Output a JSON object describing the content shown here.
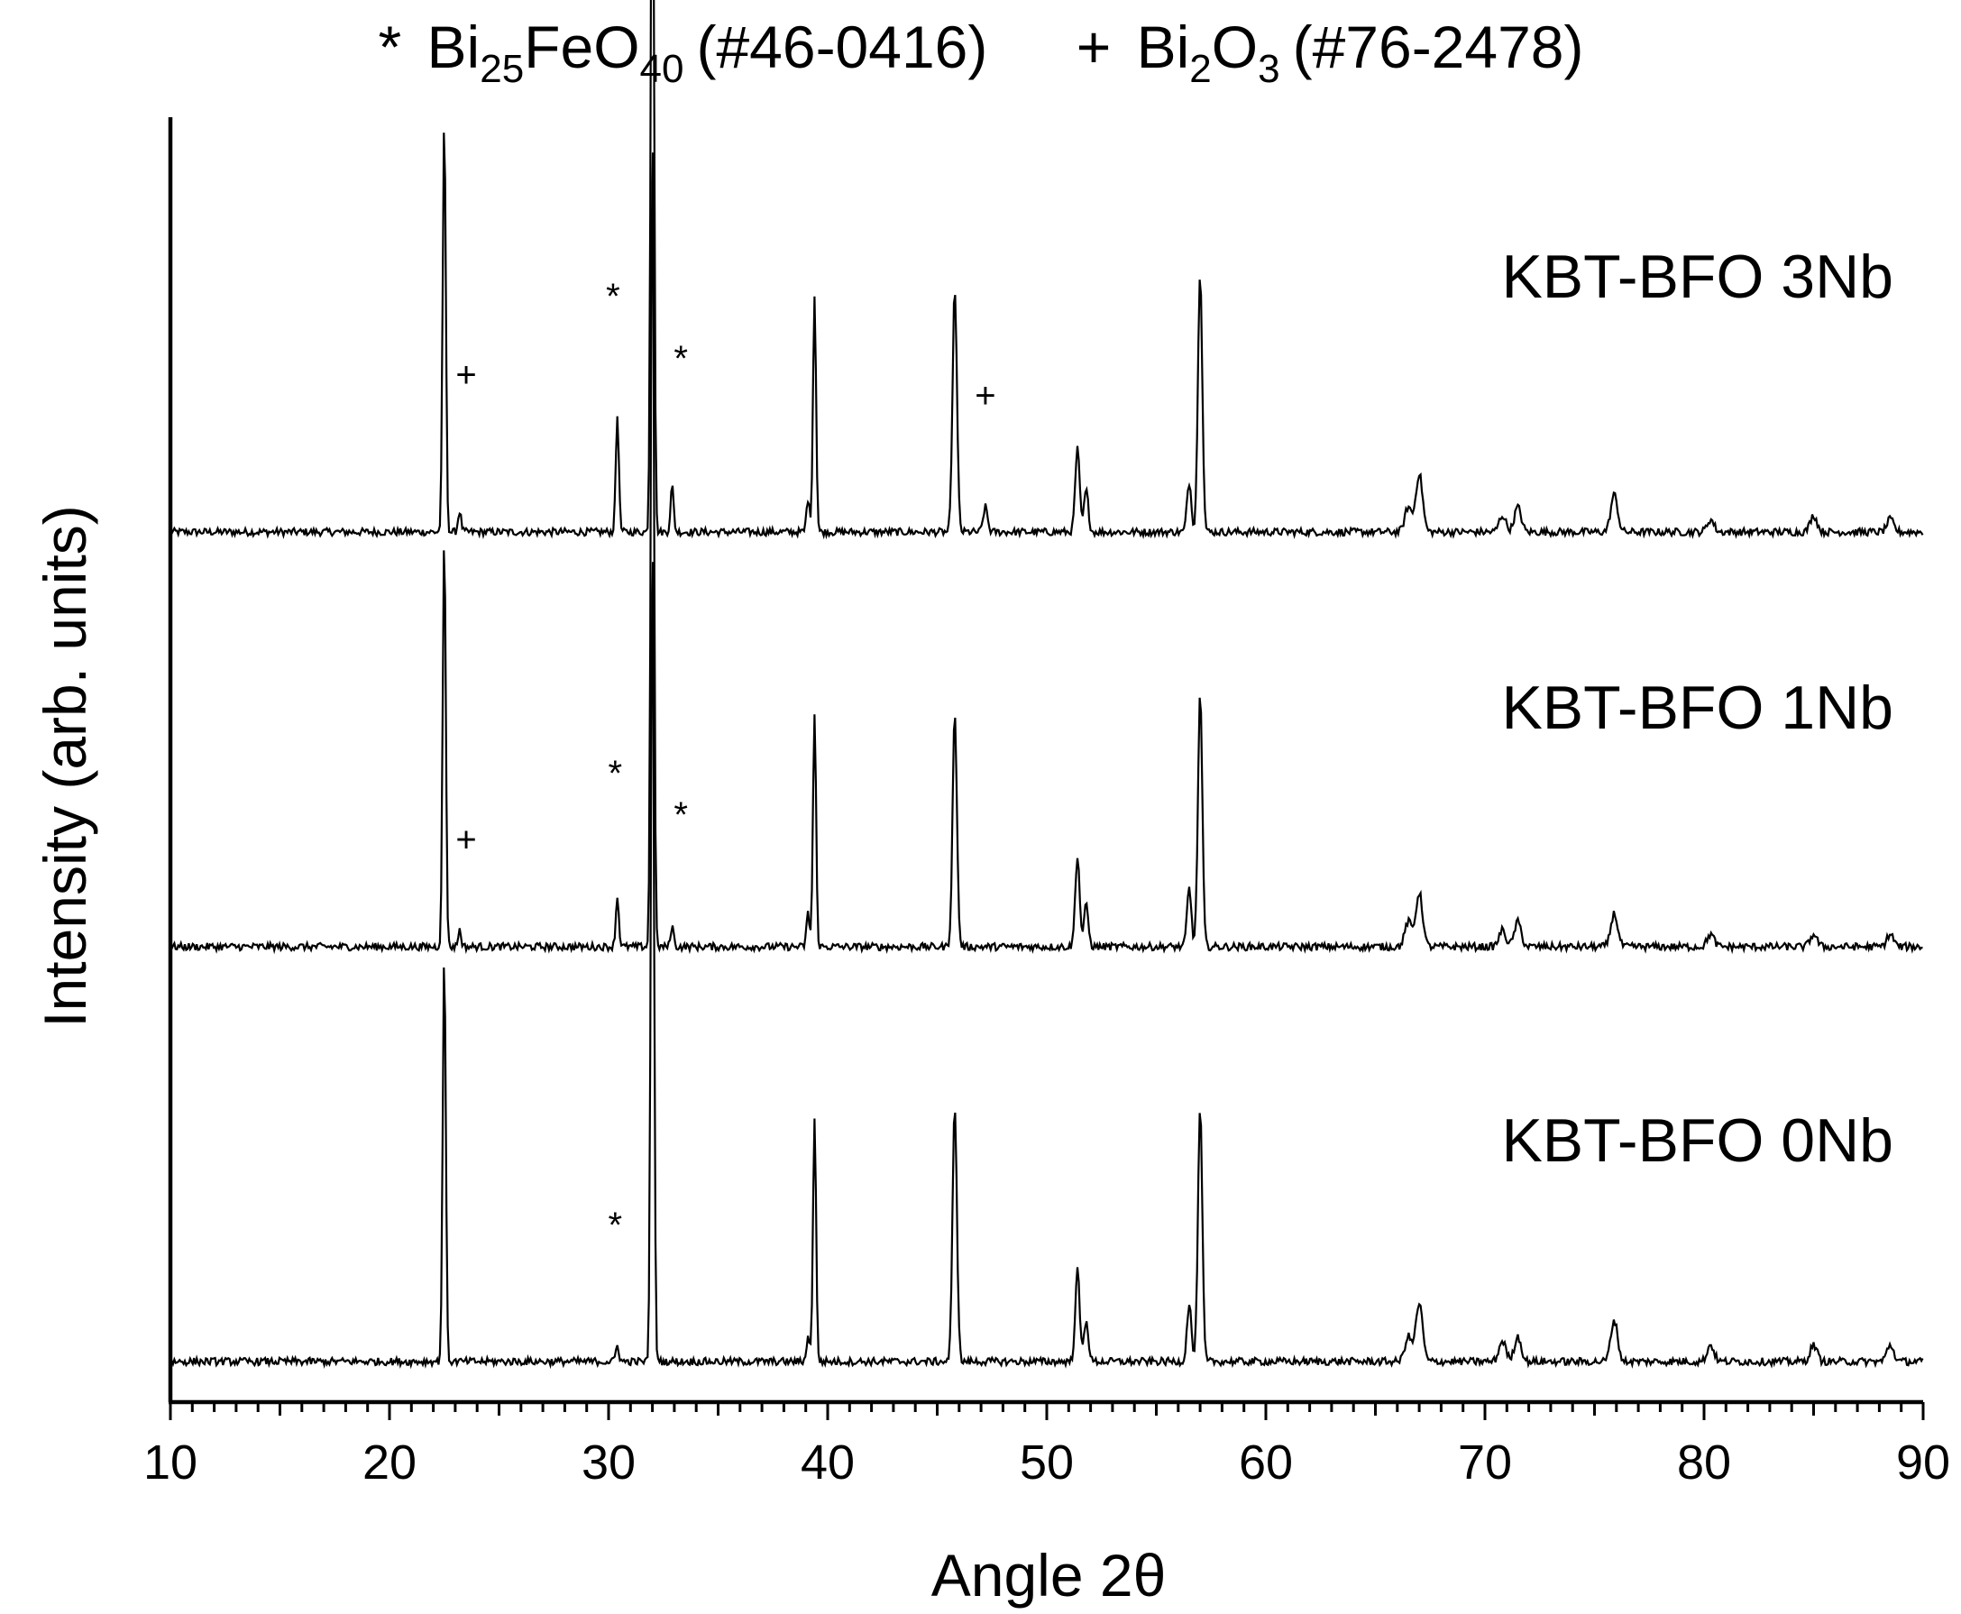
{
  "chart_data": {
    "type": "line",
    "xlabel": "Angle 2θ",
    "ylabel": "Intensity (arb. units)",
    "xlim": [
      10,
      90
    ],
    "x_ticks": [
      10,
      20,
      30,
      40,
      50,
      60,
      70,
      80,
      90
    ],
    "x_tick_labels": [
      "10",
      "20",
      "30",
      "40",
      "50",
      "60",
      "70",
      "80",
      "90"
    ],
    "y_ticks_shown": false,
    "legend": {
      "entries": [
        {
          "symbol": "*",
          "name": "Bi",
          "sub1": "25",
          "mid": "FeO",
          "sub2": "40",
          "ref": "(#46-0416)"
        },
        {
          "symbol": "+",
          "name": "Bi",
          "sub1": "2",
          "mid": "O",
          "sub2": "3",
          "ref": "(#76-2478)"
        }
      ],
      "placement": "top"
    },
    "series": [
      {
        "name": "KBT-BFO 3Nb",
        "offset": 2,
        "peaks": [
          [
            22.5,
            1.0
          ],
          [
            23.2,
            0.05
          ],
          [
            30.4,
            0.28
          ],
          [
            32.0,
            2.1
          ],
          [
            32.9,
            0.11
          ],
          [
            39.1,
            0.08
          ],
          [
            39.4,
            0.57
          ],
          [
            45.8,
            0.59
          ],
          [
            47.2,
            0.06
          ],
          [
            51.4,
            0.2
          ],
          [
            51.8,
            0.1
          ],
          [
            56.5,
            0.12
          ],
          [
            57.0,
            0.63
          ],
          [
            66.5,
            0.06
          ],
          [
            67.0,
            0.14
          ],
          [
            70.8,
            0.04
          ],
          [
            71.5,
            0.06
          ],
          [
            75.9,
            0.09
          ],
          [
            80.3,
            0.03
          ],
          [
            85.0,
            0.04
          ],
          [
            88.5,
            0.03
          ]
        ],
        "markers": [
          {
            "symbol": "+",
            "x": 23.5,
            "y": 0.38
          },
          {
            "symbol": "*",
            "x": 30.2,
            "y": 0.57
          },
          {
            "symbol": "*",
            "x": 33.3,
            "y": 0.42
          },
          {
            "symbol": "+",
            "x": 47.2,
            "y": 0.33
          }
        ]
      },
      {
        "name": "KBT-BFO 1Nb",
        "offset": 1,
        "peaks": [
          [
            22.5,
            0.99
          ],
          [
            23.2,
            0.04
          ],
          [
            30.4,
            0.12
          ],
          [
            32.0,
            2.0
          ],
          [
            32.9,
            0.05
          ],
          [
            39.1,
            0.08
          ],
          [
            39.4,
            0.56
          ],
          [
            45.8,
            0.56
          ],
          [
            51.4,
            0.22
          ],
          [
            51.8,
            0.1
          ],
          [
            56.5,
            0.14
          ],
          [
            57.0,
            0.61
          ],
          [
            66.5,
            0.06
          ],
          [
            67.0,
            0.13
          ],
          [
            70.8,
            0.04
          ],
          [
            71.5,
            0.06
          ],
          [
            75.9,
            0.08
          ],
          [
            80.3,
            0.03
          ],
          [
            85.0,
            0.03
          ],
          [
            88.5,
            0.03
          ]
        ],
        "markers": [
          {
            "symbol": "+",
            "x": 23.5,
            "y": 0.26
          },
          {
            "symbol": "*",
            "x": 30.3,
            "y": 0.42
          },
          {
            "symbol": "*",
            "x": 33.3,
            "y": 0.32
          }
        ]
      },
      {
        "name": "KBT-BFO 0Nb",
        "offset": 0,
        "peaks": [
          [
            22.5,
            0.98
          ],
          [
            30.4,
            0.04
          ],
          [
            32.0,
            2.0
          ],
          [
            39.1,
            0.06
          ],
          [
            39.4,
            0.59
          ],
          [
            45.8,
            0.62
          ],
          [
            51.4,
            0.22
          ],
          [
            51.8,
            0.1
          ],
          [
            56.5,
            0.14
          ],
          [
            57.0,
            0.61
          ],
          [
            66.5,
            0.06
          ],
          [
            67.0,
            0.14
          ],
          [
            70.8,
            0.05
          ],
          [
            71.5,
            0.06
          ],
          [
            75.9,
            0.1
          ],
          [
            80.3,
            0.04
          ],
          [
            85.0,
            0.04
          ],
          [
            88.5,
            0.04
          ]
        ],
        "markers": [
          {
            "symbol": "*",
            "x": 30.3,
            "y": 0.33
          }
        ]
      }
    ]
  }
}
